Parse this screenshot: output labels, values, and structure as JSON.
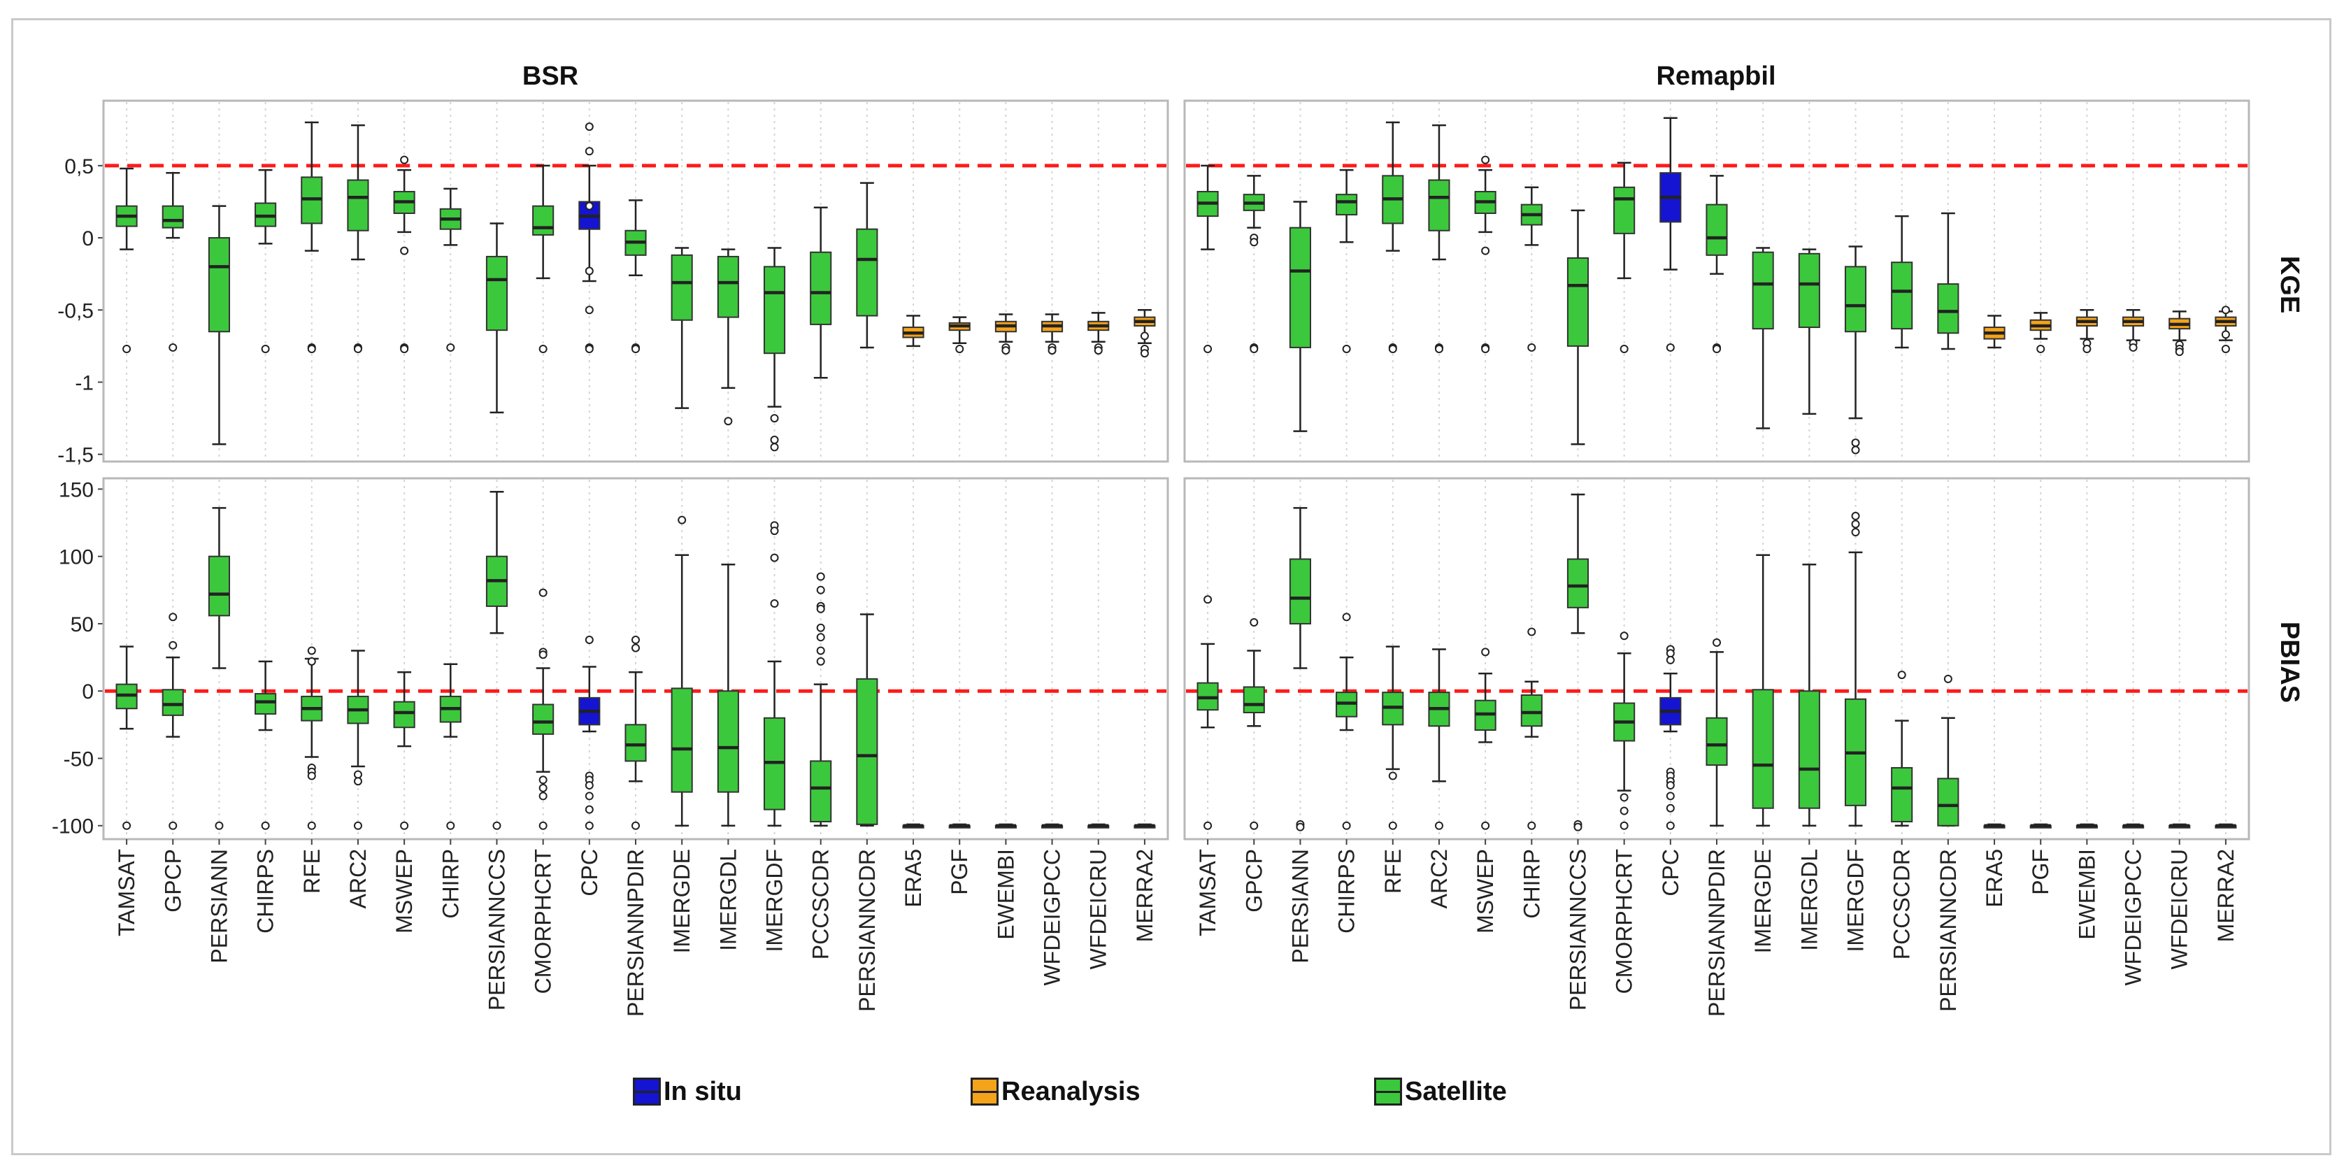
{
  "chart_data": {
    "type": "boxplot",
    "facet_columns": [
      "BSR",
      "Remapbil"
    ],
    "facet_rows": [
      "KGE",
      "PBIAS"
    ],
    "categories": [
      "TAMSAT",
      "GPCP",
      "PERSIANN",
      "CHIRPS",
      "RFE",
      "ARC2",
      "MSWEP",
      "CHIRP",
      "PERSIANNCCS",
      "CMORPHCRT",
      "CPC",
      "PERSIANNPDIR",
      "IMERGDE",
      "IMERGDL",
      "IMERGDF",
      "PCCSCDR",
      "PERSIANNCDR",
      "ERA5",
      "PGF",
      "EWEMBI",
      "WFDEIGPCC",
      "WFDEICRU",
      "MERRA2"
    ],
    "groups": [
      "Satellite",
      "Satellite",
      "Satellite",
      "Satellite",
      "Satellite",
      "Satellite",
      "Satellite",
      "Satellite",
      "Satellite",
      "Satellite",
      "In situ",
      "Satellite",
      "Satellite",
      "Satellite",
      "Satellite",
      "Satellite",
      "Satellite",
      "Reanalysis",
      "Reanalysis",
      "Reanalysis",
      "Reanalysis",
      "Reanalysis",
      "Reanalysis"
    ],
    "colors": {
      "In situ": "#1414d2",
      "Reanalysis": "#f5a31a",
      "Satellite": "#3cc83c"
    },
    "reference_line_color": "#ff1a1a",
    "legend": {
      "entries": [
        "In situ",
        "Reanalysis",
        "Satellite"
      ],
      "position": "bottom"
    },
    "rows": {
      "KGE": {
        "ylim": [
          -1.55,
          0.95
        ],
        "ticks": [
          0.5,
          0,
          -0.5,
          -1,
          -1.5
        ],
        "tick_labels": [
          "0,5",
          "0",
          "-0,5",
          "-1",
          "-1,5"
        ],
        "reference": 0.5,
        "panels": {
          "BSR": [
            [
              -0.08,
              0.08,
              0.15,
              0.22,
              0.48,
              [
                -0.77
              ]
            ],
            [
              0.0,
              0.07,
              0.12,
              0.22,
              0.45,
              [
                -0.76
              ]
            ],
            [
              -1.43,
              -0.65,
              -0.2,
              0.0,
              0.22,
              []
            ],
            [
              -0.04,
              0.08,
              0.15,
              0.24,
              0.47,
              [
                -0.77
              ]
            ],
            [
              -0.09,
              0.1,
              0.27,
              0.42,
              0.8,
              [
                -0.76,
                -0.77
              ]
            ],
            [
              -0.15,
              0.05,
              0.28,
              0.4,
              0.78,
              [
                -0.76,
                -0.77
              ]
            ],
            [
              0.04,
              0.17,
              0.25,
              0.32,
              0.47,
              [
                0.54,
                -0.09,
                -0.76,
                -0.77
              ]
            ],
            [
              -0.05,
              0.06,
              0.13,
              0.2,
              0.34,
              [
                -0.76
              ]
            ],
            [
              -1.21,
              -0.64,
              -0.29,
              -0.13,
              0.1,
              []
            ],
            [
              -0.28,
              0.02,
              0.07,
              0.22,
              0.5,
              [
                -0.77
              ]
            ],
            [
              -0.3,
              0.06,
              0.15,
              0.25,
              0.5,
              [
                0.6,
                0.77,
                0.22,
                -0.23,
                -0.5,
                -0.76,
                -0.77
              ]
            ],
            [
              -0.26,
              -0.12,
              -0.03,
              0.05,
              0.26,
              [
                -0.76,
                -0.77
              ]
            ],
            [
              -1.18,
              -0.57,
              -0.31,
              -0.12,
              -0.07,
              []
            ],
            [
              -1.04,
              -0.55,
              -0.31,
              -0.13,
              -0.08,
              [
                -1.27
              ]
            ],
            [
              -1.17,
              -0.8,
              -0.38,
              -0.2,
              -0.07,
              [
                -1.25,
                -1.4,
                -1.45
              ]
            ],
            [
              -0.97,
              -0.6,
              -0.38,
              -0.1,
              0.21,
              []
            ],
            [
              -0.76,
              -0.54,
              -0.15,
              0.06,
              0.38,
              []
            ],
            [
              -0.75,
              -0.69,
              -0.66,
              -0.62,
              -0.54,
              []
            ],
            [
              -0.73,
              -0.64,
              -0.61,
              -0.59,
              -0.55,
              [
                -0.77
              ]
            ],
            [
              -0.72,
              -0.65,
              -0.61,
              -0.58,
              -0.53,
              [
                -0.76,
                -0.78
              ]
            ],
            [
              -0.72,
              -0.65,
              -0.61,
              -0.58,
              -0.53,
              [
                -0.76,
                -0.78
              ]
            ],
            [
              -0.72,
              -0.64,
              -0.61,
              -0.58,
              -0.52,
              [
                -0.76,
                -0.78
              ]
            ],
            [
              -0.73,
              -0.61,
              -0.58,
              -0.55,
              -0.5,
              [
                -0.68,
                -0.77,
                -0.8
              ]
            ]
          ],
          "Remapbil": [
            [
              -0.08,
              0.15,
              0.24,
              0.32,
              0.5,
              [
                -0.77
              ]
            ],
            [
              0.07,
              0.19,
              0.24,
              0.3,
              0.43,
              [
                0.0,
                -0.03,
                -0.76,
                -0.77
              ]
            ],
            [
              -1.34,
              -0.76,
              -0.23,
              0.07,
              0.25,
              []
            ],
            [
              -0.03,
              0.16,
              0.25,
              0.3,
              0.47,
              [
                -0.77
              ]
            ],
            [
              -0.09,
              0.1,
              0.27,
              0.43,
              0.8,
              [
                -0.76,
                -0.77
              ]
            ],
            [
              -0.15,
              0.05,
              0.28,
              0.4,
              0.78,
              [
                -0.76,
                -0.77
              ]
            ],
            [
              0.04,
              0.17,
              0.25,
              0.32,
              0.47,
              [
                0.54,
                -0.09,
                -0.76,
                -0.77
              ]
            ],
            [
              -0.05,
              0.09,
              0.16,
              0.23,
              0.35,
              [
                -0.76
              ]
            ],
            [
              -1.43,
              -0.75,
              -0.33,
              -0.14,
              0.19,
              []
            ],
            [
              -0.28,
              0.03,
              0.27,
              0.35,
              0.52,
              [
                -0.77
              ]
            ],
            [
              -0.22,
              0.11,
              0.28,
              0.45,
              0.83,
              [
                -0.76
              ]
            ],
            [
              -0.25,
              -0.12,
              0.0,
              0.23,
              0.43,
              [
                -0.76,
                -0.77
              ]
            ],
            [
              -1.32,
              -0.63,
              -0.32,
              -0.1,
              -0.07,
              []
            ],
            [
              -1.22,
              -0.62,
              -0.32,
              -0.11,
              -0.08,
              []
            ],
            [
              -1.25,
              -0.65,
              -0.47,
              -0.2,
              -0.06,
              [
                -1.42,
                -1.47
              ]
            ],
            [
              -0.76,
              -0.63,
              -0.37,
              -0.17,
              0.15,
              []
            ],
            [
              -0.77,
              -0.66,
              -0.51,
              -0.32,
              0.17,
              []
            ],
            [
              -0.76,
              -0.7,
              -0.66,
              -0.62,
              -0.54,
              []
            ],
            [
              -0.7,
              -0.64,
              -0.61,
              -0.57,
              -0.52,
              [
                -0.77
              ]
            ],
            [
              -0.7,
              -0.61,
              -0.58,
              -0.55,
              -0.5,
              [
                -0.73,
                -0.77
              ]
            ],
            [
              -0.71,
              -0.61,
              -0.58,
              -0.55,
              -0.5,
              [
                -0.73,
                -0.76
              ]
            ],
            [
              -0.71,
              -0.63,
              -0.6,
              -0.56,
              -0.51,
              [
                -0.74,
                -0.77,
                -0.79
              ]
            ],
            [
              -0.71,
              -0.61,
              -0.58,
              -0.55,
              -0.51,
              [
                -0.5,
                -0.67,
                -0.77
              ]
            ]
          ]
        }
      },
      "PBIAS": {
        "ylim": [
          -110,
          158
        ],
        "ticks": [
          150,
          100,
          50,
          0,
          -50,
          -100
        ],
        "tick_labels": [
          "150",
          "100",
          "50",
          "0",
          "-50",
          "-100"
        ],
        "reference": 0,
        "panels": {
          "BSR": [
            [
              -28,
              -13,
              -3,
              5,
              33,
              [
                -100
              ]
            ],
            [
              -34,
              -18,
              -10,
              1,
              25,
              [
                55,
                34,
                -100
              ]
            ],
            [
              17,
              56,
              72,
              100,
              136,
              [
                -100
              ]
            ],
            [
              -29,
              -17,
              -8,
              -2,
              22,
              [
                -100
              ]
            ],
            [
              -49,
              -22,
              -13,
              -4,
              24,
              [
                30,
                22,
                -57,
                -60,
                -63,
                -100
              ]
            ],
            [
              -56,
              -24,
              -14,
              -4,
              30,
              [
                -62,
                -67,
                -100
              ]
            ],
            [
              -41,
              -27,
              -16,
              -8,
              14,
              [
                -100
              ]
            ],
            [
              -34,
              -23,
              -13,
              -4,
              20,
              [
                -100
              ]
            ],
            [
              43,
              63,
              82,
              100,
              148,
              [
                -100
              ]
            ],
            [
              -60,
              -32,
              -23,
              -10,
              17,
              [
                73,
                29,
                27,
                -66,
                -72,
                -78,
                -100
              ]
            ],
            [
              -30,
              -25,
              -15,
              -5,
              18,
              [
                38,
                -63,
                -66,
                -70,
                -78,
                -88,
                -100
              ]
            ],
            [
              -67,
              -52,
              -40,
              -25,
              14,
              [
                38,
                32,
                -100
              ]
            ],
            [
              -100,
              -75,
              -43,
              2,
              101,
              [
                127
              ]
            ],
            [
              -100,
              -75,
              -42,
              0,
              94,
              []
            ],
            [
              -100,
              -88,
              -53,
              -20,
              22,
              [
                123,
                119,
                99,
                65
              ]
            ],
            [
              -100,
              -97,
              -72,
              -52,
              5,
              [
                85,
                75,
                63,
                61,
                47,
                40,
                30,
                22
              ]
            ],
            [
              -100,
              -99,
              -48,
              9,
              57,
              []
            ],
            [
              -101,
              -100,
              -100,
              -100,
              -99,
              []
            ],
            [
              -101,
              -100,
              -100,
              -100,
              -99,
              []
            ],
            [
              -101,
              -100,
              -100,
              -100,
              -99,
              []
            ],
            [
              -101,
              -100,
              -100,
              -100,
              -99,
              []
            ],
            [
              -101,
              -100,
              -100,
              -100,
              -99,
              []
            ],
            [
              -101,
              -100,
              -100,
              -100,
              -99,
              []
            ]
          ],
          "Remapbil": [
            [
              -27,
              -14,
              -5,
              6,
              35,
              [
                68,
                -100
              ]
            ],
            [
              -26,
              -16,
              -10,
              3,
              30,
              [
                51,
                -100
              ]
            ],
            [
              17,
              50,
              69,
              98,
              136,
              [
                -99,
                -101
              ]
            ],
            [
              -29,
              -19,
              -9,
              -1,
              25,
              [
                55,
                -100
              ]
            ],
            [
              -58,
              -25,
              -12,
              -1,
              33,
              [
                -63,
                -100
              ]
            ],
            [
              -67,
              -26,
              -13,
              -1,
              31,
              [
                -100
              ]
            ],
            [
              -38,
              -29,
              -17,
              -7,
              13,
              [
                29,
                -100
              ]
            ],
            [
              -34,
              -26,
              -16,
              -3,
              7,
              [
                44,
                -100
              ]
            ],
            [
              43,
              62,
              78,
              98,
              146,
              [
                -99,
                -101
              ]
            ],
            [
              -74,
              -37,
              -23,
              -9,
              28,
              [
                41,
                -79,
                -89,
                -100
              ]
            ],
            [
              -30,
              -25,
              -15,
              -5,
              13,
              [
                31,
                28,
                23,
                -60,
                -63,
                -67,
                -70,
                -78,
                -87,
                -100
              ]
            ],
            [
              -100,
              -55,
              -40,
              -20,
              29,
              [
                36
              ]
            ],
            [
              -100,
              -87,
              -55,
              1,
              101,
              []
            ],
            [
              -100,
              -87,
              -58,
              0,
              94,
              []
            ],
            [
              -100,
              -85,
              -46,
              -6,
              103,
              [
                130,
                124,
                118
              ]
            ],
            [
              -100,
              -97,
              -72,
              -57,
              -22,
              [
                12
              ]
            ],
            [
              -100,
              -100,
              -85,
              -65,
              -20,
              [
                9
              ]
            ],
            [
              -101,
              -100,
              -100,
              -100,
              -99,
              []
            ],
            [
              -101,
              -100,
              -100,
              -100,
              -99,
              []
            ],
            [
              -101,
              -100,
              -100,
              -100,
              -99,
              []
            ],
            [
              -101,
              -100,
              -100,
              -100,
              -99,
              []
            ],
            [
              -101,
              -100,
              -100,
              -100,
              -99,
              []
            ],
            [
              -101,
              -100,
              -100,
              -100,
              -99,
              []
            ]
          ]
        }
      }
    }
  }
}
